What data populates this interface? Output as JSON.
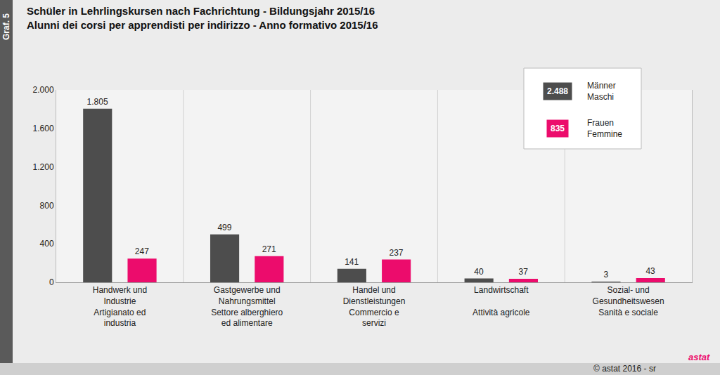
{
  "chart_data": {
    "type": "bar",
    "figure_label": "Graf. 5",
    "title": "Schüler in Lehrlingskursen nach Fachrichtung - Bildungsjahr 2015/16",
    "subtitle": "Alunni dei corsi per apprendisti per indirizzo - Anno formativo 2015/16",
    "categories": [
      "Handwerk und\nIndustrie\nArtigianato ed\nindustria",
      "Gastgewerbe und\nNahrungsmittel\nSettore alberghiero\ned alimentare",
      "Handel und\nDienstleistungen\nCommercio e\nservizi",
      "Landwirtschaft\n\nAttività agricole",
      "Sozial- und\nGesundheitswesen\nSanità e sociale"
    ],
    "series": [
      {
        "name": "Männer\nMaschi",
        "color": "#4d4d4d",
        "total": 2488,
        "total_label": "2.488",
        "values": [
          1805,
          499,
          141,
          40,
          3
        ],
        "value_labels": [
          "1.805",
          "499",
          "141",
          "40",
          "3"
        ]
      },
      {
        "name": "Frauen\nFemmine",
        "color": "#ec0c6c",
        "total": 835,
        "total_label": "835",
        "values": [
          247,
          271,
          237,
          37,
          43
        ],
        "value_labels": [
          "247",
          "271",
          "237",
          "37",
          "43"
        ]
      }
    ],
    "ylim": [
      0,
      2000
    ],
    "yticks": [
      0,
      400,
      800,
      {
        "value": 1200,
        "label": "1.200"
      },
      {
        "value": 1600,
        "label": "1.600"
      },
      {
        "value": 2000,
        "label": "2.000"
      }
    ],
    "grid": false,
    "legend": "top right",
    "data_labels": true,
    "source": "© astat 2016 - sr",
    "logo": "astat"
  }
}
